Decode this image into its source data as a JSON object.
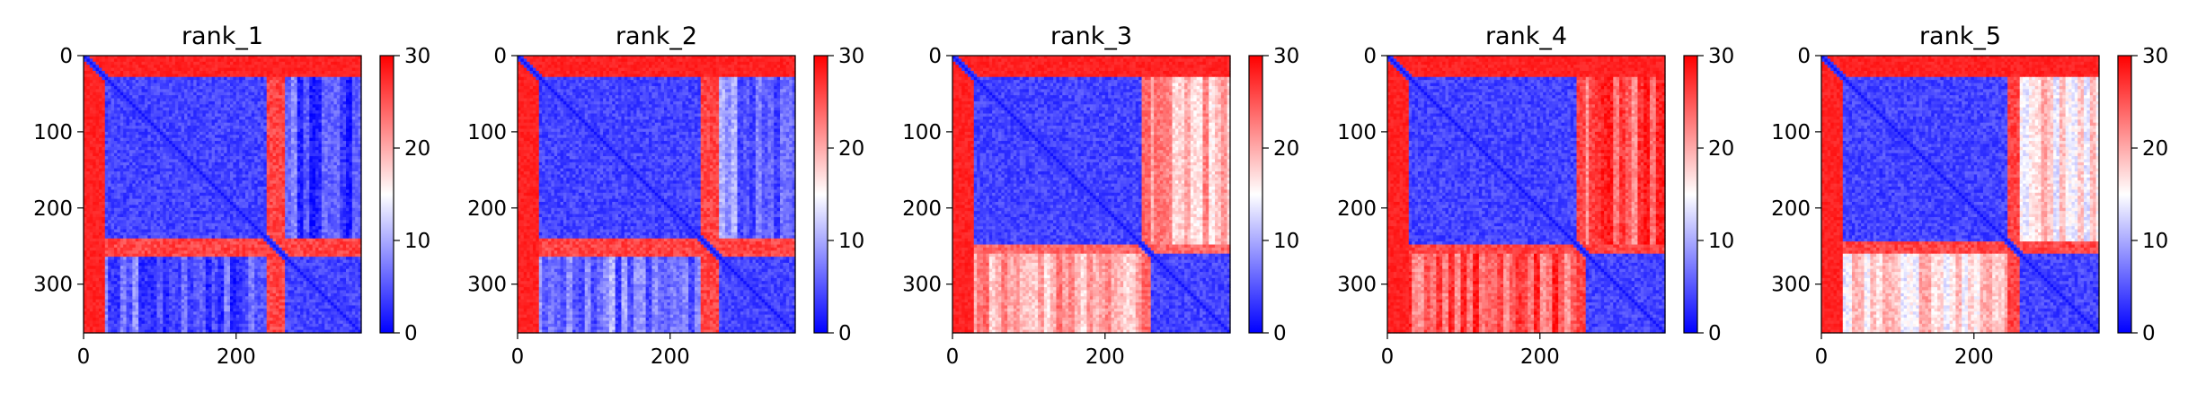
{
  "figure": {
    "background": "#ffffff"
  },
  "colormap": {
    "name": "bwr",
    "low": "#0000ff",
    "mid": "#ffffff",
    "high": "#ff0000"
  },
  "chart_data": [
    {
      "type": "heatmap",
      "title": "rank_1",
      "xlim": [
        0,
        364
      ],
      "ylim": [
        364,
        0
      ],
      "xticks": [
        0,
        200
      ],
      "yticks": [
        0,
        100,
        200,
        300
      ],
      "colorbar": {
        "vmin": 0,
        "vmax": 30,
        "ticks": [
          0,
          10,
          20,
          30
        ]
      },
      "blocks": {
        "pad": 30,
        "a_end": 240,
        "b_start": 265,
        "gap_values": [
          24,
          28
        ],
        "ab_value": 5,
        "pad_value": 29
      }
    },
    {
      "type": "heatmap",
      "title": "rank_2",
      "xlim": [
        0,
        364
      ],
      "ylim": [
        364,
        0
      ],
      "xticks": [
        0,
        200
      ],
      "yticks": [
        0,
        100,
        200,
        300
      ],
      "colorbar": {
        "vmin": 0,
        "vmax": 30,
        "ticks": [
          0,
          10,
          20,
          30
        ]
      },
      "blocks": {
        "pad": 30,
        "a_end": 240,
        "b_start": 265,
        "gap_values": [
          24,
          28
        ],
        "ab_value": 7,
        "pad_value": 29
      }
    },
    {
      "type": "heatmap",
      "title": "rank_3",
      "xlim": [
        0,
        364
      ],
      "ylim": [
        364,
        0
      ],
      "xticks": [
        0,
        200
      ],
      "yticks": [
        0,
        100,
        200,
        300
      ],
      "colorbar": {
        "vmin": 0,
        "vmax": 30,
        "ticks": [
          0,
          10,
          20,
          30
        ]
      },
      "blocks": {
        "pad": 30,
        "a_end": 250,
        "b_start": 260,
        "gap_values": [
          22,
          26
        ],
        "ab_value": 20,
        "pad_value": 29
      }
    },
    {
      "type": "heatmap",
      "title": "rank_4",
      "xlim": [
        0,
        364
      ],
      "ylim": [
        364,
        0
      ],
      "xticks": [
        0,
        200
      ],
      "yticks": [
        0,
        100,
        200,
        300
      ],
      "colorbar": {
        "vmin": 0,
        "vmax": 30,
        "ticks": [
          0,
          10,
          20,
          30
        ]
      },
      "blocks": {
        "pad": 30,
        "a_end": 250,
        "b_start": 260,
        "gap_values": [
          24,
          28
        ],
        "ab_value": 25,
        "pad_value": 29
      }
    },
    {
      "type": "heatmap",
      "title": "rank_5",
      "xlim": [
        0,
        364
      ],
      "ylim": [
        364,
        0
      ],
      "xticks": [
        0,
        200
      ],
      "yticks": [
        0,
        100,
        200,
        300
      ],
      "colorbar": {
        "vmin": 0,
        "vmax": 30,
        "ticks": [
          0,
          10,
          20,
          30
        ]
      },
      "blocks": {
        "pad": 30,
        "a_end": 245,
        "b_start": 260,
        "gap_values": [
          24,
          28
        ],
        "ab_value": 17,
        "pad_value": 29
      }
    }
  ]
}
